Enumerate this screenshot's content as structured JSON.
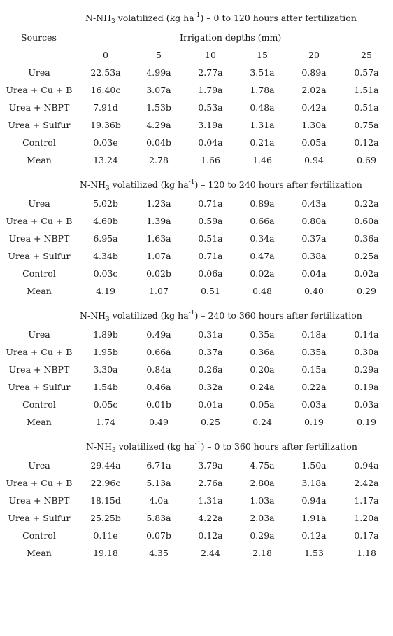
{
  "table": {
    "title_prefix": "N-NH",
    "title_sub": "3",
    "title_mid": " volatilized (kg ha",
    "title_sup": "-1",
    "title_close": ") – ",
    "sources_header": "Sources",
    "irrigation_header": "Irrigation depths (mm)",
    "depths": [
      "0",
      "5",
      "10",
      "15",
      "20",
      "25"
    ],
    "sections": [
      {
        "period": "0 to 120 hours after fertilization",
        "rows": [
          {
            "source": "Urea",
            "values": [
              "22.53a",
              "4.99a",
              "2.77a",
              "3.51a",
              "0.89a",
              "0.57a"
            ]
          },
          {
            "source": "Urea + Cu + B",
            "values": [
              "16.40c",
              "3.07a",
              "1.79a",
              "1.78a",
              "2.02a",
              "1.51a"
            ]
          },
          {
            "source": "Urea + NBPT",
            "values": [
              "7.91d",
              "1.53b",
              "0.53a",
              "0.48a",
              "0.42a",
              "0.51a"
            ]
          },
          {
            "source": "Urea + Sulfur",
            "values": [
              "19.36b",
              "4.29a",
              "3.19a",
              "1.31a",
              "1.30a",
              "0.75a"
            ]
          },
          {
            "source": "Control",
            "values": [
              "0.03e",
              "0.04b",
              "0.04a",
              "0.21a",
              "0.05a",
              "0.12a"
            ]
          },
          {
            "source": "Mean",
            "values": [
              "13.24",
              "2.78",
              "1.66",
              "1.46",
              "0.94",
              "0.69"
            ]
          }
        ]
      },
      {
        "period": "120 to 240 hours after fertilization",
        "rows": [
          {
            "source": "Urea",
            "values": [
              "5.02b",
              "1.23a",
              "0.71a",
              "0.89a",
              "0.43a",
              "0.22a"
            ]
          },
          {
            "source": "Urea + Cu + B",
            "values": [
              "4.60b",
              "1.39a",
              "0.59a",
              "0.66a",
              "0.80a",
              "0.60a"
            ]
          },
          {
            "source": "Urea + NBPT",
            "values": [
              "6.95a",
              "1.63a",
              "0.51a",
              "0.34a",
              "0.37a",
              "0.36a"
            ]
          },
          {
            "source": "Urea + Sulfur",
            "values": [
              "4.34b",
              "1.07a",
              "0.71a",
              "0.47a",
              "0.38a",
              "0.25a"
            ]
          },
          {
            "source": "Control",
            "values": [
              "0.03c",
              "0.02b",
              "0.06a",
              "0.02a",
              "0.04a",
              "0.02a"
            ]
          },
          {
            "source": "Mean",
            "values": [
              "4.19",
              "1.07",
              "0.51",
              "0.48",
              "0.40",
              "0.29"
            ]
          }
        ]
      },
      {
        "period": "240 to 360 hours after fertilization",
        "rows": [
          {
            "source": "Urea",
            "values": [
              "1.89b",
              "0.49a",
              "0.31a",
              "0.35a",
              "0.18a",
              "0.14a"
            ]
          },
          {
            "source": "Urea + Cu + B",
            "values": [
              "1.95b",
              "0.66a",
              "0.37a",
              "0.36a",
              "0.35a",
              "0.30a"
            ]
          },
          {
            "source": "Urea + NBPT",
            "values": [
              "3.30a",
              "0.84a",
              "0.26a",
              "0.20a",
              "0.15a",
              "0.29a"
            ]
          },
          {
            "source": "Urea + Sulfur",
            "values": [
              "1.54b",
              "0.46a",
              "0.32a",
              "0.24a",
              "0.22a",
              "0.19a"
            ]
          },
          {
            "source": "Control",
            "values": [
              "0.05c",
              "0.01b",
              "0.01a",
              "0.05a",
              "0.03a",
              "0.03a"
            ]
          },
          {
            "source": "Mean",
            "values": [
              "1.74",
              "0.49",
              "0.25",
              "0.24",
              "0.19",
              "0.19"
            ]
          }
        ]
      },
      {
        "period": "0 to 360 hours after fertilization",
        "rows": [
          {
            "source": "Urea",
            "values": [
              "29.44a",
              "6.71a",
              "3.79a",
              "4.75a",
              "1.50a",
              "0.94a"
            ]
          },
          {
            "source": "Urea + Cu + B",
            "values": [
              "22.96c",
              "5.13a",
              "2.76a",
              "2.80a",
              "3.18a",
              "2.42a"
            ]
          },
          {
            "source": "Urea + NBPT",
            "values": [
              "18.15d",
              "4.0a",
              "1.31a",
              "1.03a",
              "0.94a",
              "1.17a"
            ]
          },
          {
            "source": "Urea + Sulfur",
            "values": [
              "25.25b",
              "5.83a",
              "4.22a",
              "2.03a",
              "1.91a",
              "1.20a"
            ]
          },
          {
            "source": "Control",
            "values": [
              "0.11e",
              "0.07b",
              "0.12a",
              "0.29a",
              "0.12a",
              "0.17a"
            ]
          },
          {
            "source": "Mean",
            "values": [
              "19.18",
              "4.35",
              "2.44",
              "2.18",
              "1.53",
              "1.18"
            ]
          }
        ]
      }
    ]
  }
}
